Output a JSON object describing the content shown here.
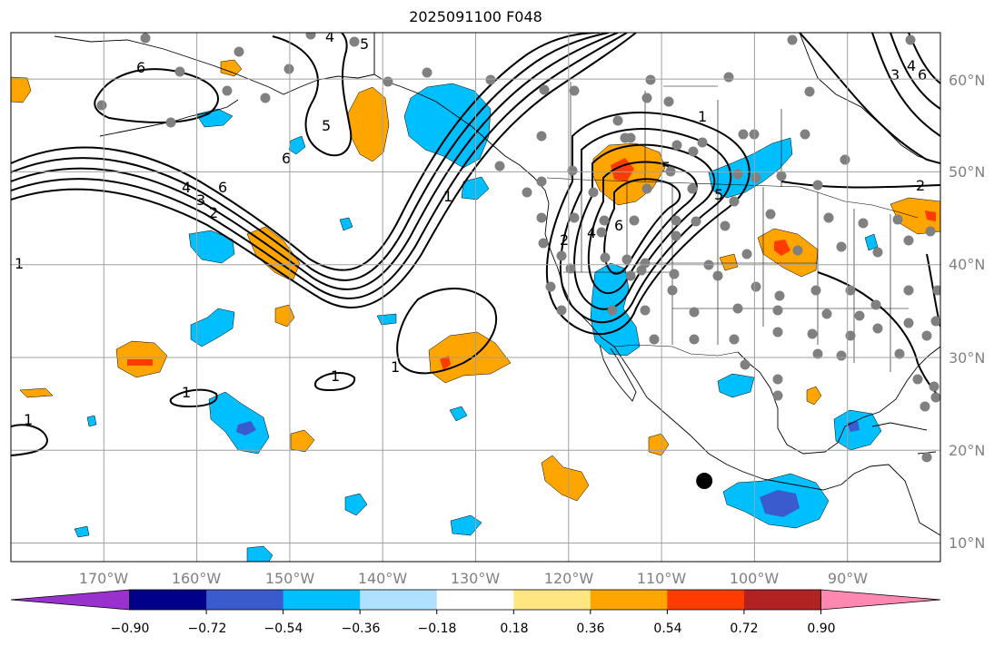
{
  "title": "2025091100 F048",
  "map": {
    "projection": "plate-carree",
    "lon_range": [
      -180,
      -80
    ],
    "lat_range": [
      8,
      65
    ],
    "longitude_labels": [
      "170°W",
      "160°W",
      "150°W",
      "140°W",
      "130°W",
      "120°W",
      "110°W",
      "100°W",
      "90°W"
    ],
    "latitude_labels": [
      "60°N",
      "50°N",
      "40°N",
      "30°N",
      "20°N",
      "10°N"
    ],
    "gridlines": true,
    "contour_labels": [
      "1",
      "2",
      "3",
      "4",
      "5",
      "6"
    ]
  },
  "colorbar": {
    "tick_labels": [
      "−0.90",
      "−0.72",
      "−0.54",
      "−0.36",
      "−0.18",
      "0.18",
      "0.36",
      "0.54",
      "0.72",
      "0.90"
    ],
    "colors": [
      "#9932cc",
      "#00008b",
      "#3a5bcd",
      "#00bfff",
      "#b0e0ff",
      "#ffffff",
      "#ffe680",
      "#ffa500",
      "#ff3c00",
      "#b22222",
      "#ff88b0"
    ]
  },
  "marker": {
    "color": "#000000",
    "lon": -105.4,
    "lat": 16.7
  }
}
